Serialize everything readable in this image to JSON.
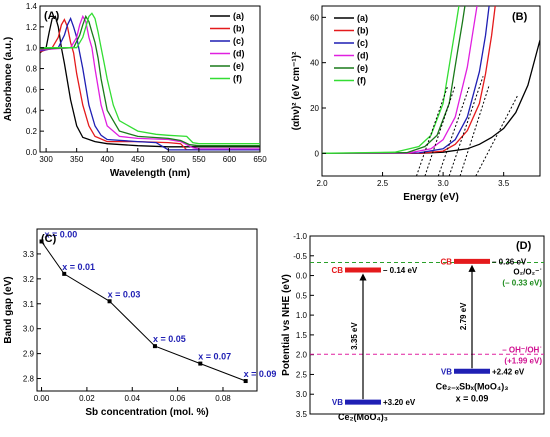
{
  "chart_data": [
    {
      "type": "line",
      "panel_label": "(A)",
      "xlabel": "Wavelength (nm)",
      "ylabel": "Absorbance (a.u.)",
      "xlim": [
        290,
        650
      ],
      "ylim": [
        0,
        1.4
      ],
      "xticks": [
        "300",
        "350",
        "400",
        "450",
        "500",
        "550",
        "600",
        "650"
      ],
      "yticks": [
        "0.0",
        "0.2",
        "0.4",
        "0.6",
        "0.8",
        "1.0",
        "1.2",
        "1.4"
      ],
      "legend_position": "top-right",
      "series": [
        {
          "name": "(a)",
          "color": "#000000",
          "x": [
            290,
            300,
            305,
            310,
            315,
            320,
            325,
            330,
            340,
            350,
            360,
            380,
            400,
            450,
            500,
            550,
            600,
            650
          ],
          "y": [
            0.95,
            1.0,
            1.15,
            1.28,
            1.3,
            1.2,
            1.0,
            0.85,
            0.5,
            0.25,
            0.14,
            0.1,
            0.08,
            0.06,
            0.05,
            0.05,
            0.05,
            0.05
          ]
        },
        {
          "name": "(b)",
          "color": "#e41a1c",
          "x": [
            290,
            310,
            320,
            325,
            330,
            335,
            340,
            345,
            350,
            360,
            370,
            380,
            400,
            450,
            500,
            520,
            530,
            550,
            650
          ],
          "y": [
            0.96,
            1.0,
            1.1,
            1.22,
            1.27,
            1.2,
            1.05,
            0.95,
            0.75,
            0.45,
            0.25,
            0.15,
            0.1,
            0.1,
            0.09,
            0.08,
            0.02,
            0.02,
            0.02
          ]
        },
        {
          "name": "(c)",
          "color": "#1f1fb4",
          "x": [
            290,
            320,
            330,
            335,
            340,
            345,
            350,
            355,
            360,
            370,
            380,
            390,
            400,
            450,
            480,
            500,
            550,
            650
          ],
          "y": [
            0.97,
            1.0,
            1.12,
            1.22,
            1.28,
            1.2,
            1.1,
            0.95,
            0.8,
            0.45,
            0.25,
            0.16,
            0.12,
            0.1,
            0.09,
            0.02,
            0.02,
            0.02
          ]
        },
        {
          "name": "(d)",
          "color": "#e020e0",
          "x": [
            290,
            340,
            350,
            355,
            360,
            365,
            370,
            375,
            380,
            390,
            400,
            420,
            450,
            500,
            520,
            540,
            550,
            650
          ],
          "y": [
            0.98,
            1.0,
            1.1,
            1.22,
            1.3,
            1.25,
            1.1,
            1.0,
            0.8,
            0.45,
            0.25,
            0.15,
            0.13,
            0.12,
            0.1,
            0.04,
            0.03,
            0.03
          ]
        },
        {
          "name": "(e)",
          "color": "#1a7a1a",
          "x": [
            290,
            345,
            355,
            360,
            365,
            370,
            375,
            380,
            385,
            390,
            400,
            420,
            450,
            500,
            520,
            535,
            550,
            650
          ],
          "y": [
            0.99,
            1.0,
            1.12,
            1.22,
            1.3,
            1.25,
            1.15,
            1.05,
            0.9,
            0.7,
            0.4,
            0.2,
            0.15,
            0.13,
            0.11,
            0.07,
            0.06,
            0.06
          ]
        },
        {
          "name": "(f)",
          "color": "#33dd33",
          "x": [
            290,
            350,
            360,
            365,
            370,
            375,
            380,
            385,
            390,
            395,
            400,
            410,
            420,
            450,
            480,
            500,
            530,
            540,
            550,
            650
          ],
          "y": [
            1.0,
            1.0,
            1.1,
            1.2,
            1.3,
            1.33,
            1.28,
            1.15,
            1.0,
            0.85,
            0.7,
            0.45,
            0.3,
            0.2,
            0.17,
            0.16,
            0.15,
            0.09,
            0.08,
            0.08
          ]
        }
      ]
    },
    {
      "type": "line",
      "panel_label": "(B)",
      "xlabel": "Energy (eV)",
      "ylabel": "(αhν)² (eV cm⁻¹)²",
      "xlim": [
        2.0,
        3.8
      ],
      "ylim": [
        -10,
        65
      ],
      "xticks": [
        "2.0",
        "2.5",
        "3.0",
        "3.5"
      ],
      "yticks": [
        "0",
        "20",
        "40",
        "60"
      ],
      "legend_position": "top-left",
      "series": [
        {
          "name": "(a)",
          "color": "#000000",
          "x": [
            2.0,
            2.8,
            3.0,
            3.2,
            3.3,
            3.4,
            3.5,
            3.6,
            3.7,
            3.8
          ],
          "y": [
            0,
            0,
            0.5,
            2,
            4,
            7,
            11,
            18,
            30,
            50
          ]
        },
        {
          "name": "(b)",
          "color": "#e41a1c",
          "x": [
            2.0,
            2.8,
            3.0,
            3.1,
            3.2,
            3.3,
            3.35,
            3.4,
            3.43
          ],
          "y": [
            0,
            0,
            1,
            4,
            10,
            22,
            35,
            52,
            65
          ]
        },
        {
          "name": "(c)",
          "color": "#1f1fb4",
          "x": [
            2.0,
            2.8,
            3.0,
            3.1,
            3.2,
            3.3,
            3.35,
            3.38
          ],
          "y": [
            0,
            0.2,
            2,
            6,
            16,
            36,
            52,
            65
          ]
        },
        {
          "name": "(d)",
          "color": "#e020e0",
          "x": [
            2.0,
            2.7,
            2.9,
            3.0,
            3.1,
            3.2,
            3.25,
            3.28
          ],
          "y": [
            0,
            0,
            2,
            6,
            16,
            38,
            55,
            65
          ]
        },
        {
          "name": "(e)",
          "color": "#1a7a1a",
          "x": [
            2.0,
            2.7,
            2.85,
            2.95,
            3.05,
            3.12,
            3.16,
            3.18
          ],
          "y": [
            0,
            0.3,
            3,
            8,
            22,
            45,
            58,
            65
          ]
        },
        {
          "name": "(f)",
          "color": "#33dd33",
          "x": [
            2.0,
            2.6,
            2.8,
            2.9,
            3.0,
            3.07,
            3.11,
            3.13
          ],
          "y": [
            0,
            0.5,
            3,
            8,
            22,
            45,
            58,
            65
          ]
        }
      ],
      "tangent_lines": [
        {
          "x": [
            3.27,
            3.62
          ],
          "y": [
            -10,
            26
          ]
        },
        {
          "x": [
            3.14,
            3.38
          ],
          "y": [
            -10,
            30
          ]
        },
        {
          "x": [
            3.05,
            3.33
          ],
          "y": [
            -10,
            34
          ]
        },
        {
          "x": [
            2.96,
            3.22
          ],
          "y": [
            -10,
            30
          ]
        },
        {
          "x": [
            2.85,
            3.1
          ],
          "y": [
            -10,
            30
          ]
        },
        {
          "x": [
            2.78,
            3.04
          ],
          "y": [
            -10,
            30
          ]
        }
      ]
    },
    {
      "type": "line",
      "panel_label": "(C)",
      "xlabel": "Sb concentration (mol. %)",
      "ylabel": "Band gap (eV)",
      "xlim": [
        -0.002,
        0.095
      ],
      "ylim": [
        2.75,
        3.4
      ],
      "xticks": [
        "0.00",
        "0.02",
        "0.04",
        "0.06",
        "0.08"
      ],
      "yticks": [
        "2.8",
        "2.9",
        "3.0",
        "3.1",
        "3.2",
        "3.3"
      ],
      "x": [
        0.0,
        0.01,
        0.03,
        0.05,
        0.07,
        0.09
      ],
      "y": [
        3.35,
        3.22,
        3.11,
        2.93,
        2.86,
        2.79
      ],
      "annotations": [
        "x = 0.00",
        "x = 0.01",
        "x = 0.03",
        "x = 0.05",
        "x = 0.07",
        "x = 0.09"
      ]
    },
    {
      "type": "diagram",
      "panel_label": "(D)",
      "ylabel": "Potential vs NHE (eV)",
      "ylim": [
        -1.0,
        3.5
      ],
      "yticks": [
        "-1.0",
        "-0.5",
        "0.0",
        "0.5",
        "1.0",
        "1.5",
        "2.0",
        "2.5",
        "3.0",
        "3.5"
      ],
      "o2_level": -0.33,
      "oh_level": 1.99,
      "o2_label": "O₂/O₂⁻˙",
      "o2_value": "(– 0.33 eV)",
      "oh_label": "– OH⁻/OH˙",
      "oh_value": "(+1.99 eV)",
      "materials": [
        {
          "name": "Ce₂(MoO₄)₃",
          "cb": -0.14,
          "vb": 3.2,
          "cb_label": "– 0.14 eV",
          "vb_label": "+3.20 eV",
          "gap_label": "3.35 eV",
          "extra_label": ""
        },
        {
          "name": "Ce₂₋ₓSbₓ(MoO₄)₃",
          "cb": -0.36,
          "vb": 2.42,
          "cb_label": "– 0.36 eV",
          "vb_label": "+2.42 eV",
          "gap_label": "2.79 eV",
          "extra_label": "x = 0.09"
        }
      ],
      "cb_tag": "CB",
      "vb_tag": "VB"
    }
  ]
}
